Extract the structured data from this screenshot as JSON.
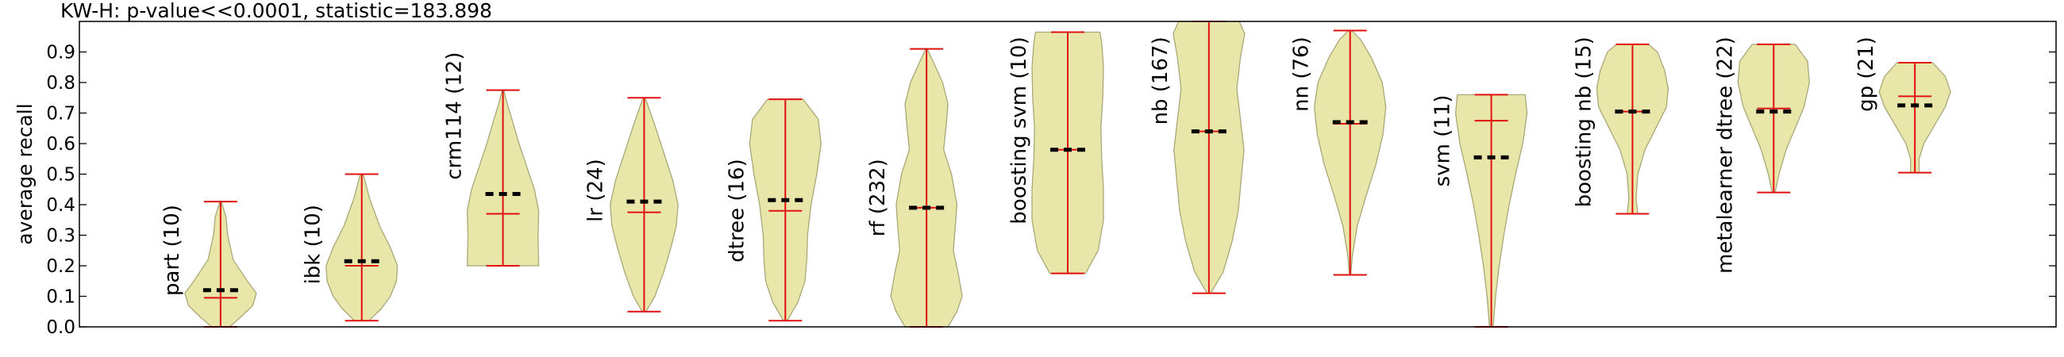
{
  "chart_data": {
    "type": "violin",
    "title": "KW-H: p-value<<0.0001, statistic=183.898",
    "xlabel": "",
    "ylabel": "average recall",
    "ylim": [
      0,
      1.0
    ],
    "yticks": [
      0.0,
      0.1,
      0.2,
      0.3,
      0.4,
      0.5,
      0.6,
      0.7,
      0.8,
      0.9
    ],
    "grid": false,
    "colors": {
      "body": "#e8e6a8",
      "edge": "#a8a878",
      "lines": "#e01010",
      "mean": "#000000"
    },
    "series": [
      {
        "label": "part (10)",
        "min": 0.0,
        "max": 0.41,
        "median": 0.095,
        "mean": 0.12,
        "label_top": 0.4,
        "density": [
          [
            0.0,
            0.25
          ],
          [
            0.03,
            0.55
          ],
          [
            0.07,
            0.9
          ],
          [
            0.11,
            1.0
          ],
          [
            0.15,
            0.75
          ],
          [
            0.22,
            0.35
          ],
          [
            0.3,
            0.2
          ],
          [
            0.36,
            0.15
          ],
          [
            0.41,
            0.02
          ]
        ]
      },
      {
        "label": "ibk (10)",
        "min": 0.02,
        "max": 0.5,
        "median": 0.2,
        "mean": 0.215,
        "label_top": 0.4,
        "density": [
          [
            0.02,
            0.2
          ],
          [
            0.06,
            0.55
          ],
          [
            0.1,
            0.8
          ],
          [
            0.15,
            0.97
          ],
          [
            0.2,
            1.0
          ],
          [
            0.26,
            0.8
          ],
          [
            0.33,
            0.5
          ],
          [
            0.42,
            0.22
          ],
          [
            0.5,
            0.04
          ]
        ]
      },
      {
        "label": "crm114 (12)",
        "min": 0.2,
        "max": 0.775,
        "median": 0.37,
        "mean": 0.435,
        "label_top": 0.9,
        "density": [
          [
            0.2,
            1.0
          ],
          [
            0.3,
            0.98
          ],
          [
            0.38,
            1.0
          ],
          [
            0.45,
            0.88
          ],
          [
            0.53,
            0.65
          ],
          [
            0.6,
            0.45
          ],
          [
            0.68,
            0.25
          ],
          [
            0.73,
            0.12
          ],
          [
            0.775,
            0.02
          ]
        ]
      },
      {
        "label": "lr (24)",
        "min": 0.05,
        "max": 0.75,
        "median": 0.375,
        "mean": 0.41,
        "label_top": 0.55,
        "density": [
          [
            0.05,
            0.05
          ],
          [
            0.1,
            0.3
          ],
          [
            0.18,
            0.55
          ],
          [
            0.26,
            0.75
          ],
          [
            0.33,
            0.9
          ],
          [
            0.4,
            0.95
          ],
          [
            0.48,
            0.8
          ],
          [
            0.57,
            0.55
          ],
          [
            0.66,
            0.3
          ],
          [
            0.75,
            0.03
          ]
        ]
      },
      {
        "label": "dtree (16)",
        "min": 0.02,
        "max": 0.745,
        "median": 0.38,
        "mean": 0.415,
        "label_top": 0.55,
        "density": [
          [
            0.02,
            0.05
          ],
          [
            0.08,
            0.35
          ],
          [
            0.15,
            0.55
          ],
          [
            0.22,
            0.6
          ],
          [
            0.3,
            0.62
          ],
          [
            0.4,
            0.72
          ],
          [
            0.5,
            0.88
          ],
          [
            0.6,
            1.0
          ],
          [
            0.68,
            0.92
          ],
          [
            0.745,
            0.5
          ]
        ]
      },
      {
        "label": "rf (232)",
        "min": 0.0,
        "max": 0.91,
        "median": 0.39,
        "mean": 0.39,
        "label_top": 0.55,
        "density": [
          [
            0.0,
            0.6
          ],
          [
            0.05,
            0.85
          ],
          [
            0.1,
            1.0
          ],
          [
            0.18,
            0.88
          ],
          [
            0.25,
            0.75
          ],
          [
            0.32,
            0.8
          ],
          [
            0.4,
            0.85
          ],
          [
            0.5,
            0.7
          ],
          [
            0.58,
            0.48
          ],
          [
            0.66,
            0.55
          ],
          [
            0.73,
            0.6
          ],
          [
            0.8,
            0.45
          ],
          [
            0.86,
            0.22
          ],
          [
            0.91,
            0.02
          ]
        ]
      },
      {
        "label": "boosting svm (10)",
        "min": 0.175,
        "max": 0.965,
        "median": 0.58,
        "mean": 0.58,
        "label_top": 0.95,
        "density": [
          [
            0.175,
            0.5
          ],
          [
            0.25,
            0.85
          ],
          [
            0.35,
            1.0
          ],
          [
            0.45,
            1.0
          ],
          [
            0.55,
            0.95
          ],
          [
            0.65,
            0.93
          ],
          [
            0.75,
            0.98
          ],
          [
            0.85,
            1.0
          ],
          [
            0.93,
            0.95
          ],
          [
            0.965,
            0.9
          ]
        ]
      },
      {
        "label": "nb (167)",
        "min": 0.11,
        "max": 1.0,
        "median": 0.64,
        "mean": 0.64,
        "label_top": 0.95,
        "density": [
          [
            0.11,
            0.05
          ],
          [
            0.18,
            0.4
          ],
          [
            0.28,
            0.65
          ],
          [
            0.38,
            0.82
          ],
          [
            0.48,
            0.9
          ],
          [
            0.58,
            0.98
          ],
          [
            0.68,
            0.88
          ],
          [
            0.78,
            0.78
          ],
          [
            0.88,
            0.88
          ],
          [
            0.96,
            1.0
          ],
          [
            1.0,
            0.85
          ]
        ]
      },
      {
        "label": "nn (76)",
        "min": 0.17,
        "max": 0.97,
        "median": 0.665,
        "mean": 0.67,
        "label_top": 0.95,
        "density": [
          [
            0.17,
            0.02
          ],
          [
            0.23,
            0.06
          ],
          [
            0.33,
            0.2
          ],
          [
            0.43,
            0.45
          ],
          [
            0.53,
            0.72
          ],
          [
            0.63,
            0.92
          ],
          [
            0.72,
            1.0
          ],
          [
            0.8,
            0.9
          ],
          [
            0.88,
            0.6
          ],
          [
            0.94,
            0.3
          ],
          [
            0.97,
            0.05
          ]
        ]
      },
      {
        "label": "svm (11)",
        "min": 0.0,
        "max": 0.76,
        "median": 0.675,
        "mean": 0.555,
        "label_top": 0.76,
        "density": [
          [
            0.0,
            0.05
          ],
          [
            0.1,
            0.12
          ],
          [
            0.2,
            0.22
          ],
          [
            0.3,
            0.35
          ],
          [
            0.4,
            0.5
          ],
          [
            0.5,
            0.68
          ],
          [
            0.6,
            0.88
          ],
          [
            0.7,
            1.0
          ],
          [
            0.76,
            0.95
          ]
        ]
      },
      {
        "label": "boosting nb (15)",
        "min": 0.37,
        "max": 0.925,
        "median": 0.705,
        "mean": 0.705,
        "label_top": 0.95,
        "density": [
          [
            0.37,
            0.15
          ],
          [
            0.42,
            0.1
          ],
          [
            0.5,
            0.15
          ],
          [
            0.58,
            0.35
          ],
          [
            0.65,
            0.65
          ],
          [
            0.72,
            0.95
          ],
          [
            0.78,
            1.0
          ],
          [
            0.84,
            0.9
          ],
          [
            0.9,
            0.7
          ],
          [
            0.925,
            0.45
          ]
        ]
      },
      {
        "label": "metalearner dtree (22)",
        "min": 0.44,
        "max": 0.925,
        "median": 0.715,
        "mean": 0.705,
        "label_top": 0.95,
        "density": [
          [
            0.44,
            0.04
          ],
          [
            0.5,
            0.15
          ],
          [
            0.58,
            0.35
          ],
          [
            0.65,
            0.6
          ],
          [
            0.72,
            0.85
          ],
          [
            0.8,
            1.0
          ],
          [
            0.87,
            0.95
          ],
          [
            0.925,
            0.6
          ]
        ]
      },
      {
        "label": "gp (21)",
        "min": 0.505,
        "max": 0.865,
        "median": 0.755,
        "mean": 0.725,
        "label_top": 0.95,
        "density": [
          [
            0.505,
            0.12
          ],
          [
            0.55,
            0.12
          ],
          [
            0.6,
            0.25
          ],
          [
            0.66,
            0.55
          ],
          [
            0.72,
            0.85
          ],
          [
            0.77,
            1.0
          ],
          [
            0.82,
            0.85
          ],
          [
            0.865,
            0.5
          ]
        ]
      }
    ]
  }
}
